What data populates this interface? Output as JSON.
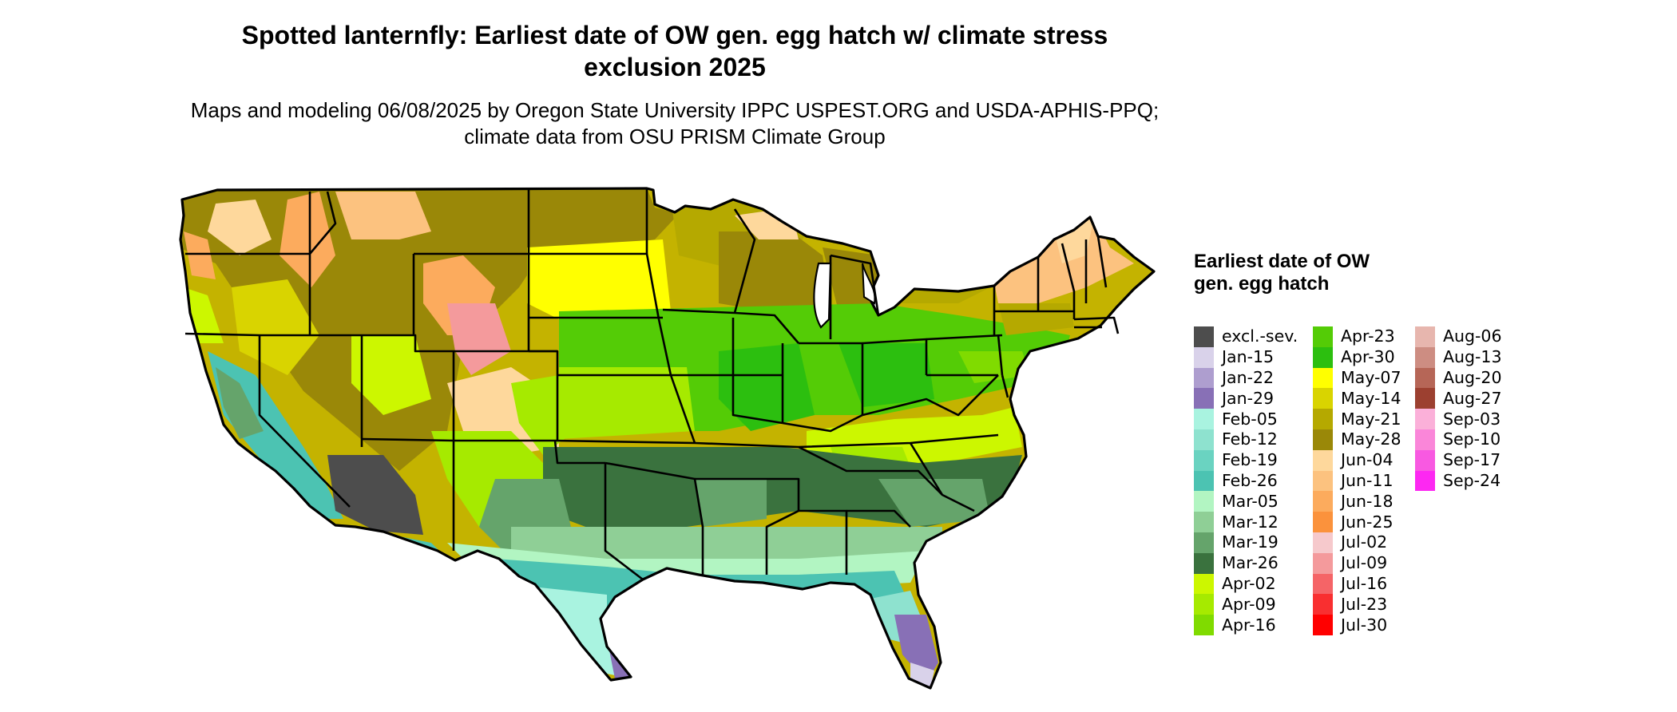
{
  "title": "Spotted lanternfly: Earliest date of OW gen. egg hatch w/ climate stress exclusion 2025",
  "subtitle": "Maps and modeling 06/08/2025 by Oregon State University IPPC USPEST.ORG and USDA-APHIS-PPQ; climate data from OSU PRISM Climate Group",
  "legend": {
    "title": "Earliest date of OW gen. egg hatch",
    "columns": [
      [
        {
          "label": "excl.-sev.",
          "color": "#4d4d4d"
        },
        {
          "label": "Jan-15",
          "color": "#d9d2ea"
        },
        {
          "label": "Jan-22",
          "color": "#ae9ecf"
        },
        {
          "label": "Jan-29",
          "color": "#8870b6"
        },
        {
          "label": "Feb-05",
          "color": "#a9f3e0"
        },
        {
          "label": "Feb-12",
          "color": "#8ee2cf"
        },
        {
          "label": "Feb-19",
          "color": "#6ad3c1"
        },
        {
          "label": "Feb-26",
          "color": "#4cc3b2"
        },
        {
          "label": "Mar-05",
          "color": "#b2f5c2"
        },
        {
          "label": "Mar-12",
          "color": "#8fcf96"
        },
        {
          "label": "Mar-19",
          "color": "#65a46b"
        },
        {
          "label": "Mar-26",
          "color": "#3a723e"
        },
        {
          "label": "Apr-02",
          "color": "#ccf700"
        },
        {
          "label": "Apr-09",
          "color": "#a6ea00"
        },
        {
          "label": "Apr-16",
          "color": "#80db00"
        }
      ],
      [
        {
          "label": "Apr-23",
          "color": "#54cc06"
        },
        {
          "label": "Apr-30",
          "color": "#2cbf0f"
        },
        {
          "label": "May-07",
          "color": "#ffff00"
        },
        {
          "label": "May-14",
          "color": "#d9d400"
        },
        {
          "label": "May-21",
          "color": "#b5a900"
        },
        {
          "label": "May-28",
          "color": "#9a8808"
        },
        {
          "label": "Jun-04",
          "color": "#fed89c"
        },
        {
          "label": "Jun-11",
          "color": "#fcc27f"
        },
        {
          "label": "Jun-18",
          "color": "#fcab5d"
        },
        {
          "label": "Jun-25",
          "color": "#fb923c"
        },
        {
          "label": "Jul-02",
          "color": "#f6c9cc"
        },
        {
          "label": "Jul-09",
          "color": "#f49a9c"
        },
        {
          "label": "Jul-16",
          "color": "#f56467"
        },
        {
          "label": "Jul-23",
          "color": "#f92f30"
        },
        {
          "label": "Jul-30",
          "color": "#ff0000"
        }
      ],
      [
        {
          "label": "Aug-06",
          "color": "#e7b6ae"
        },
        {
          "label": "Aug-13",
          "color": "#cd8d82"
        },
        {
          "label": "Aug-20",
          "color": "#b66657"
        },
        {
          "label": "Aug-27",
          "color": "#9c4030"
        },
        {
          "label": "Sep-03",
          "color": "#fbb0d9"
        },
        {
          "label": "Sep-10",
          "color": "#fa86d9"
        },
        {
          "label": "Sep-17",
          "color": "#f859e1"
        },
        {
          "label": "Sep-24",
          "color": "#fd28f2"
        }
      ]
    ]
  }
}
